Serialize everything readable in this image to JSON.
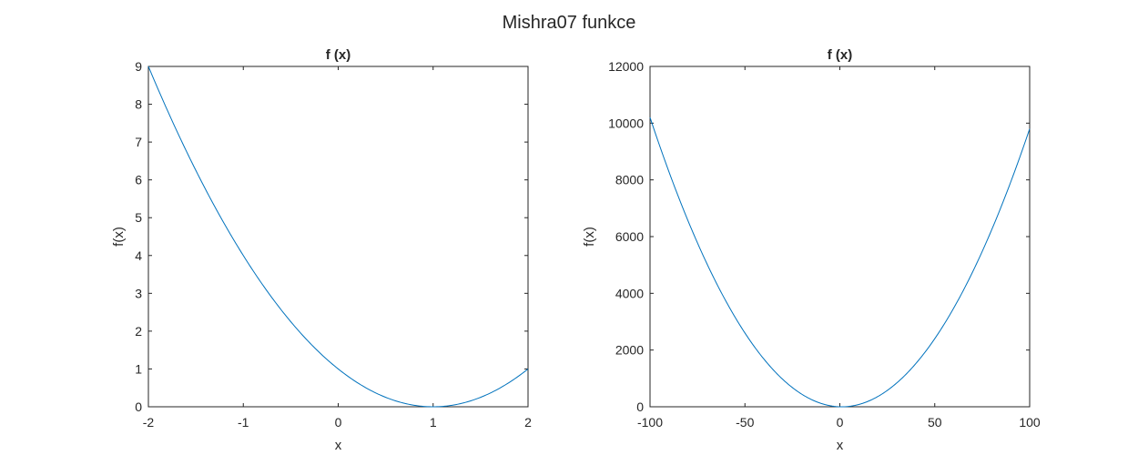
{
  "figure": {
    "title": "Mishra07 funkce"
  },
  "colors": {
    "line": "#0072BD",
    "axis": "#262626",
    "background": "#ffffff"
  },
  "chart_data": [
    {
      "type": "line",
      "title": "f (x)",
      "xlabel": "x",
      "ylabel": "f(x)",
      "xlim": [
        -2,
        2
      ],
      "ylim": [
        0,
        9
      ],
      "xticks": [
        -2,
        -1,
        0,
        1,
        2
      ],
      "yticks": [
        0,
        1,
        2,
        3,
        4,
        5,
        6,
        7,
        8,
        9
      ],
      "xtick_labels": [
        "-2",
        "-1",
        "0",
        "1",
        "2"
      ],
      "ytick_labels": [
        "0",
        "1",
        "2",
        "3",
        "4",
        "5",
        "6",
        "7",
        "8",
        "9"
      ],
      "grid": false,
      "series": [
        {
          "x": [
            -2,
            -1.5,
            -1,
            -0.5,
            0,
            0.5,
            1,
            1.5,
            2
          ],
          "y": [
            9,
            6.25,
            4,
            2.25,
            1,
            0.25,
            0,
            0.25,
            1
          ]
        }
      ]
    },
    {
      "type": "line",
      "title": "f (x)",
      "xlabel": "x",
      "ylabel": "f(x)",
      "xlim": [
        -100,
        100
      ],
      "ylim": [
        0,
        12000
      ],
      "xticks": [
        -100,
        -50,
        0,
        50,
        100
      ],
      "yticks": [
        0,
        2000,
        4000,
        6000,
        8000,
        10000,
        12000
      ],
      "xtick_labels": [
        "-100",
        "-50",
        "0",
        "50",
        "100"
      ],
      "ytick_labels": [
        "0",
        "2000",
        "4000",
        "6000",
        "8000",
        "10000",
        "12000"
      ],
      "grid": false,
      "series": [
        {
          "x": [
            -100,
            -75,
            -50,
            -25,
            0,
            1,
            25,
            50,
            75,
            100
          ],
          "y": [
            10201,
            5776,
            2601,
            676,
            1,
            0,
            576,
            2401,
            5476,
            9801
          ]
        }
      ]
    }
  ]
}
